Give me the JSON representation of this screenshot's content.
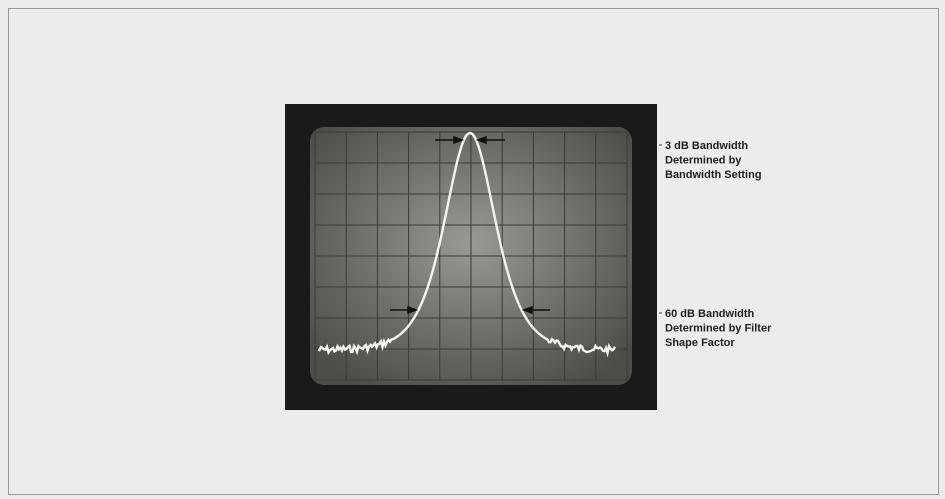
{
  "annotations": [
    {
      "lines": [
        "3 dB Bandwidth",
        "Determined by",
        "Bandwidth Setting"
      ]
    },
    {
      "lines": [
        "60 dB Bandwidth",
        "Determined by Filter",
        "Shape Factor"
      ]
    }
  ]
}
